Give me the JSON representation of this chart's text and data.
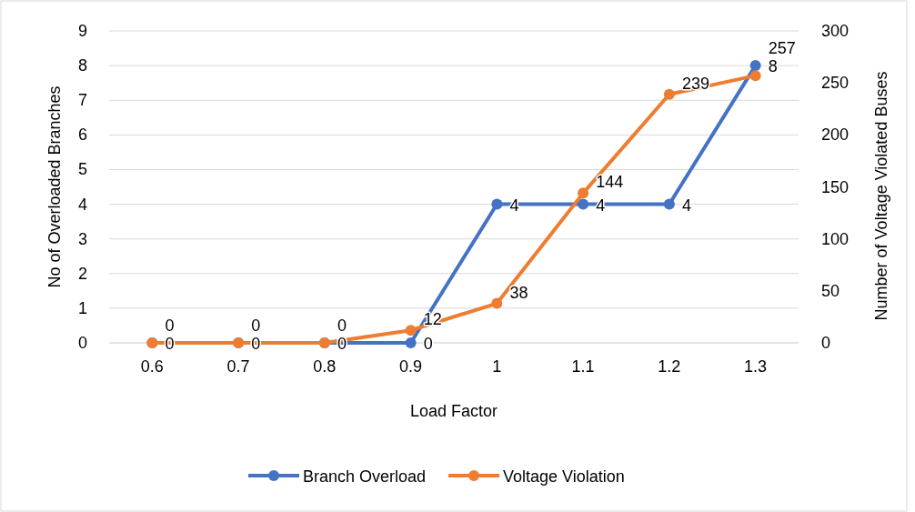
{
  "chart_data": {
    "type": "line",
    "xlabel": "Load Factor",
    "ylabel": "No of Overloaded Branches",
    "y2label": "Number of Voltage Violated Buses",
    "categories": [
      "0.6",
      "0.7",
      "0.8",
      "0.9",
      "1",
      "1.1",
      "1.2",
      "1.3"
    ],
    "series": [
      {
        "name": "Branch Overload",
        "color": "#4472c4",
        "values": [
          0,
          0,
          0,
          0,
          4,
          4,
          4,
          8
        ]
      },
      {
        "name": "Voltage Violation",
        "color": "#ed7d31",
        "axis": "y2",
        "values": [
          0,
          0,
          0,
          12,
          38,
          144,
          239,
          257
        ]
      }
    ],
    "ylim": [
      0,
      9
    ],
    "yticks": [
      0,
      1,
      2,
      3,
      4,
      5,
      6,
      7,
      8,
      9
    ],
    "y2lim": [
      0,
      300
    ],
    "y2ticks": [
      0,
      50,
      100,
      150,
      200,
      250,
      300
    ],
    "grid": "y",
    "legend": "bottom",
    "marker": "circle",
    "line_style": "solid",
    "data_labels": true
  }
}
